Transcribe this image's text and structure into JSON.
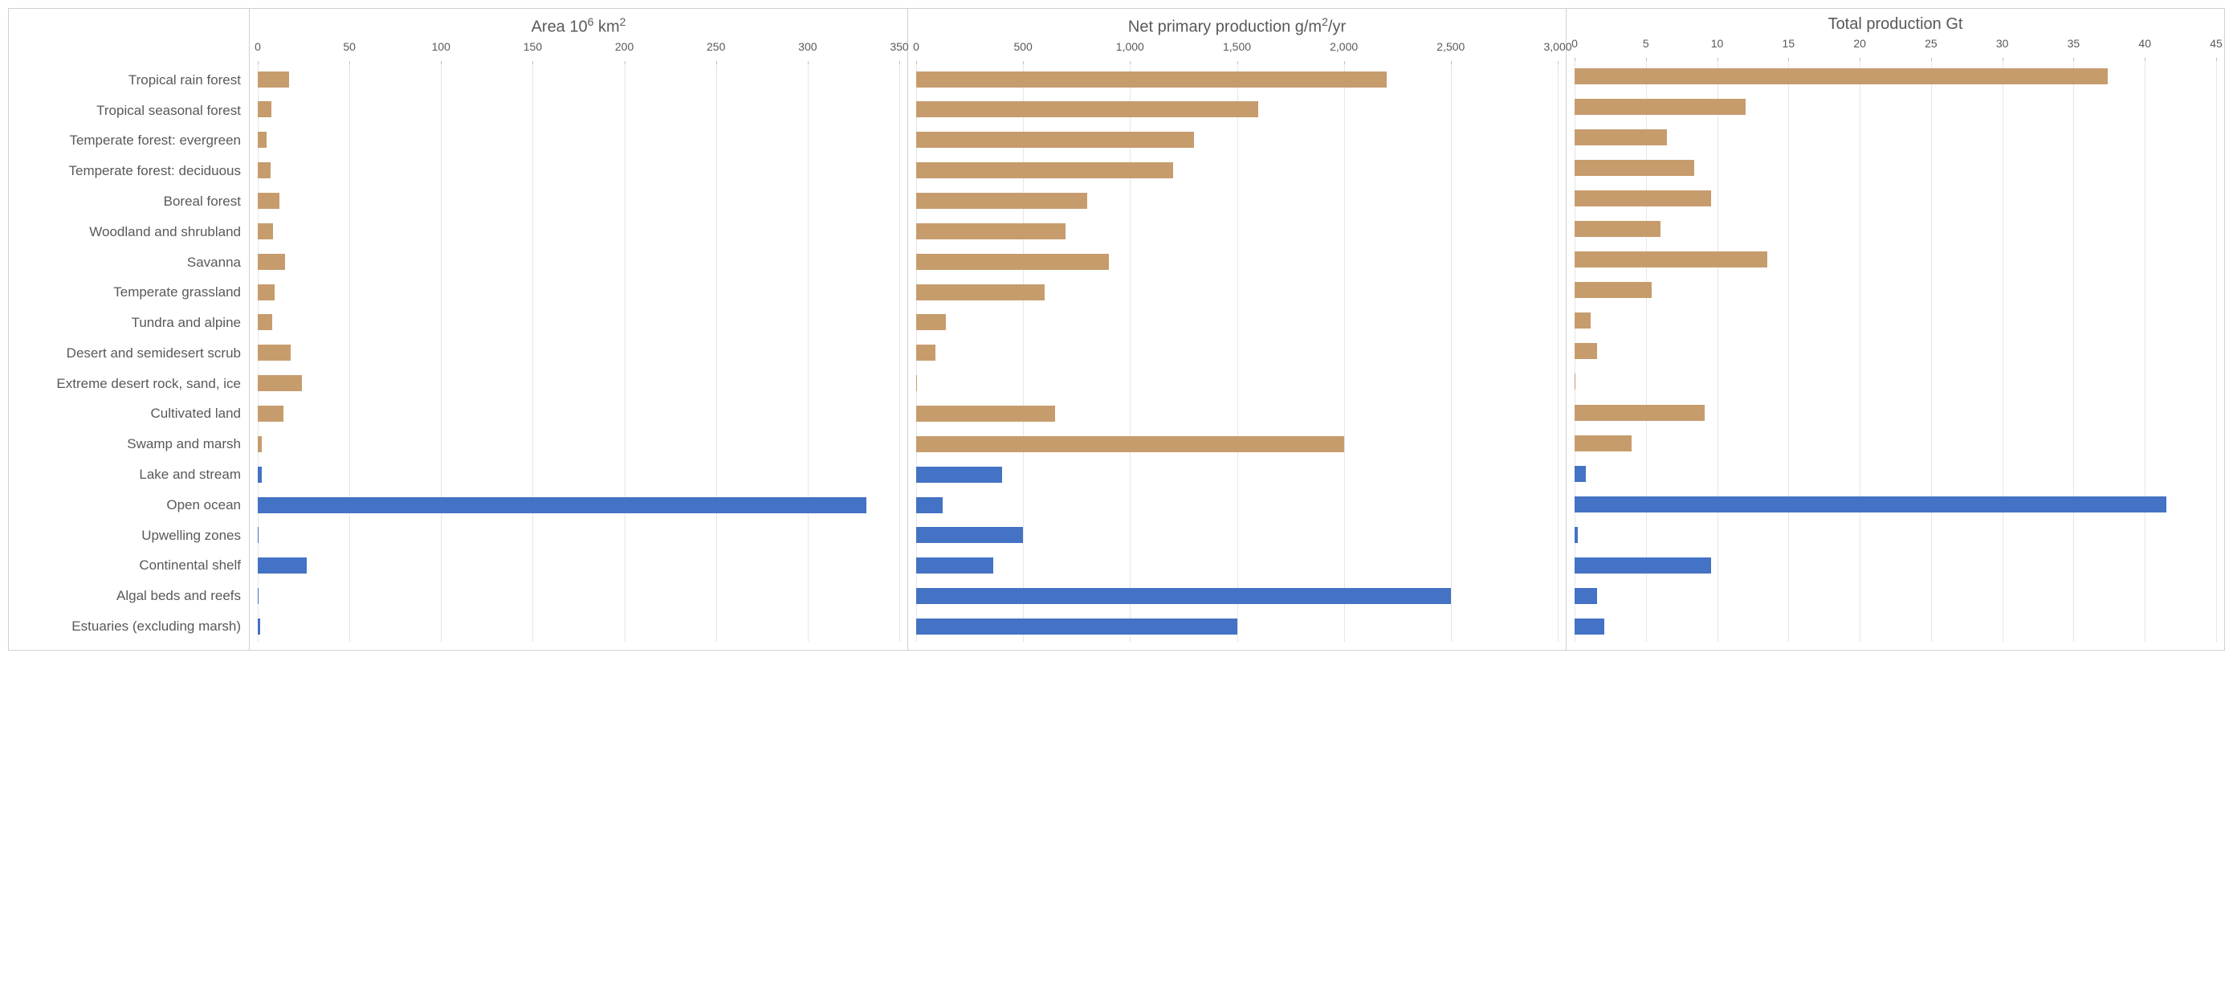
{
  "background_color": "#ffffff",
  "border_color": "#d0d0d0",
  "grid_color": "#e6e6e6",
  "text_color": "#595959",
  "label_fontsize": 17,
  "title_fontsize": 20,
  "tick_fontsize": 14,
  "colors": {
    "land": "#c69c6d",
    "water": "#4472c4"
  },
  "categories": [
    {
      "label": "Tropical rain forest",
      "type": "land"
    },
    {
      "label": "Tropical seasonal forest",
      "type": "land"
    },
    {
      "label": "Temperate forest: evergreen",
      "type": "land"
    },
    {
      "label": "Temperate forest: deciduous",
      "type": "land"
    },
    {
      "label": "Boreal forest",
      "type": "land"
    },
    {
      "label": "Woodland and shrubland",
      "type": "land"
    },
    {
      "label": "Savanna",
      "type": "land"
    },
    {
      "label": "Temperate grassland",
      "type": "land"
    },
    {
      "label": "Tundra and alpine",
      "type": "land"
    },
    {
      "label": "Desert and semidesert scrub",
      "type": "land"
    },
    {
      "label": "Extreme desert rock, sand, ice",
      "type": "land"
    },
    {
      "label": "Cultivated land",
      "type": "land"
    },
    {
      "label": "Swamp and marsh",
      "type": "land"
    },
    {
      "label": "Lake and stream",
      "type": "water"
    },
    {
      "label": "Open ocean",
      "type": "water"
    },
    {
      "label": "Upwelling zones",
      "type": "water"
    },
    {
      "label": "Continental shelf",
      "type": "water"
    },
    {
      "label": "Algal beds and reefs",
      "type": "water"
    },
    {
      "label": "Estuaries (excluding marsh)",
      "type": "water"
    }
  ],
  "panels": [
    {
      "title_html": "Area 10<sup>6</sup> km<sup>2</sup>",
      "xmin": 0,
      "xmax": 350,
      "tick_step": 50,
      "ticks": [
        0,
        50,
        100,
        150,
        200,
        250,
        300,
        350
      ],
      "tick_format": "plain",
      "values": [
        17,
        7.5,
        5,
        7,
        12,
        8.5,
        15,
        9,
        8,
        18,
        24,
        14,
        2,
        2,
        332,
        0.4,
        26.6,
        0.6,
        1.4
      ]
    },
    {
      "title_html": "Net primary production g/m<sup>2</sup>/yr",
      "xmin": 0,
      "xmax": 3000,
      "tick_step": 500,
      "ticks": [
        0,
        500,
        1000,
        1500,
        2000,
        2500,
        3000
      ],
      "tick_format": "comma",
      "values": [
        2200,
        1600,
        1300,
        1200,
        800,
        700,
        900,
        600,
        140,
        90,
        3,
        650,
        2000,
        400,
        125,
        500,
        360,
        2500,
        1500
      ]
    },
    {
      "title_html": "Total production Gt",
      "xmin": 0,
      "xmax": 45,
      "tick_step": 5,
      "ticks": [
        0,
        5,
        10,
        15,
        20,
        25,
        30,
        35,
        40,
        45
      ],
      "tick_format": "plain",
      "values": [
        37.4,
        12,
        6.5,
        8.4,
        9.6,
        6,
        13.5,
        5.4,
        1.1,
        1.6,
        0.07,
        9.1,
        4,
        0.8,
        41.5,
        0.2,
        9.6,
        1.6,
        2.1
      ]
    }
  ]
}
